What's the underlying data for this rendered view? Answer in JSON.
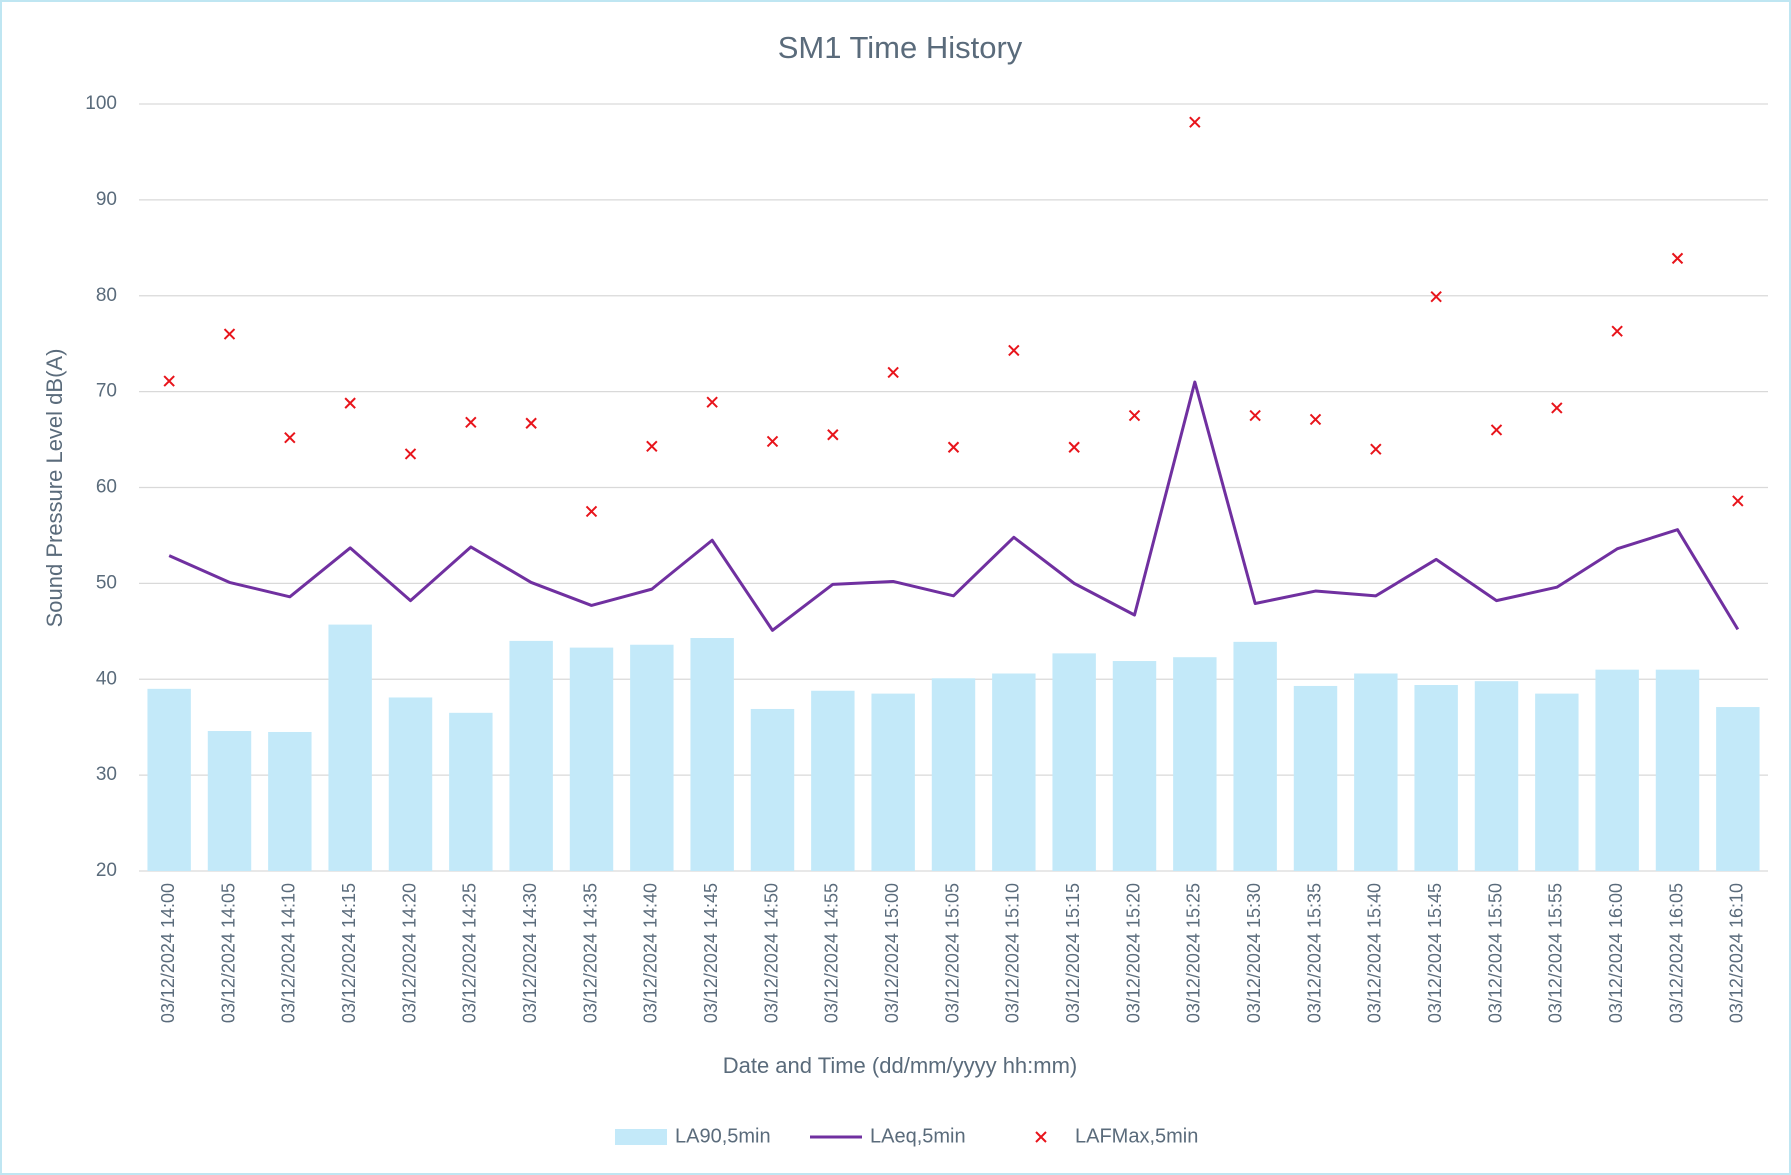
{
  "chart_data": {
    "type": "combo",
    "title": "SM1 Time History",
    "x_label": "Date and Time (dd/mm/yyyy hh:mm)",
    "y_label": "Sound Pressure Level dB(A)",
    "categories": [
      "03/12/2024 14:00",
      "03/12/2024 14:05",
      "03/12/2024 14:10",
      "03/12/2024 14:15",
      "03/12/2024 14:20",
      "03/12/2024 14:25",
      "03/12/2024 14:30",
      "03/12/2024 14:35",
      "03/12/2024 14:40",
      "03/12/2024 14:45",
      "03/12/2024 14:50",
      "03/12/2024 14:55",
      "03/12/2024 15:00",
      "03/12/2024 15:05",
      "03/12/2024 15:10",
      "03/12/2024 15:15",
      "03/12/2024 15:20",
      "03/12/2024 15:25",
      "03/12/2024 15:30",
      "03/12/2024 15:35",
      "03/12/2024 15:40",
      "03/12/2024 15:45",
      "03/12/2024 15:50",
      "03/12/2024 15:55",
      "03/12/2024 16:00",
      "03/12/2024 16:05",
      "03/12/2024 16:10"
    ],
    "series": [
      {
        "name": "LA90,5min",
        "type": "bar",
        "color": "#c3e9f9",
        "values": [
          39.0,
          34.6,
          34.5,
          45.7,
          38.1,
          36.5,
          44.0,
          43.3,
          43.6,
          44.3,
          36.9,
          38.8,
          38.5,
          40.1,
          40.6,
          42.7,
          41.9,
          42.3,
          43.9,
          39.3,
          40.6,
          39.4,
          39.8,
          38.5,
          41.0,
          41.0,
          37.1
        ]
      },
      {
        "name": "LAeq,5min",
        "type": "line",
        "color": "#7030a0",
        "values": [
          52.9,
          50.1,
          48.6,
          53.7,
          48.2,
          53.8,
          50.1,
          47.7,
          49.4,
          54.5,
          45.1,
          49.9,
          50.2,
          48.7,
          54.8,
          50.0,
          46.7,
          71.0,
          47.9,
          49.2,
          48.7,
          52.5,
          48.2,
          49.6,
          53.6,
          55.6,
          45.2
        ]
      },
      {
        "name": "LAFMax,5min",
        "type": "scatter",
        "color": "#e8141b",
        "values": [
          71.1,
          76.0,
          65.2,
          68.8,
          63.5,
          66.8,
          66.7,
          57.5,
          64.3,
          68.9,
          64.8,
          65.5,
          72.0,
          64.2,
          74.3,
          64.2,
          67.5,
          98.1,
          67.5,
          67.1,
          64.0,
          79.9,
          66.0,
          68.3,
          76.3,
          83.9,
          58.6
        ]
      }
    ],
    "ylim": [
      20,
      100
    ],
    "yticks": [
      20,
      30,
      40,
      50,
      60,
      70,
      80,
      90,
      100
    ],
    "grid": true,
    "legend": "bottom"
  }
}
